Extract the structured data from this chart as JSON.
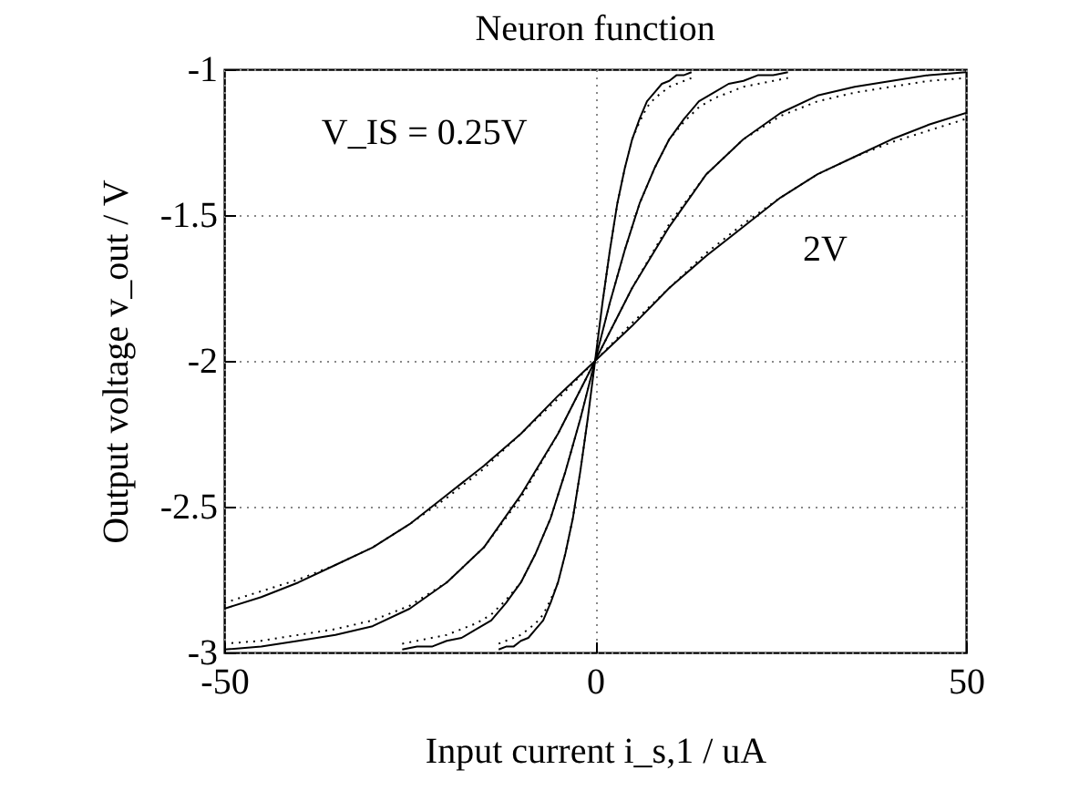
{
  "chart_data": {
    "type": "line",
    "title": "Neuron function",
    "xlabel": "Input current i_s,1 / uA",
    "ylabel": "Output voltage v_out / V",
    "xlim": [
      -50,
      50
    ],
    "ylim": [
      -3,
      -1
    ],
    "xticks": [
      -50,
      0,
      50
    ],
    "yticks": [
      -3,
      -2.5,
      -2,
      -1.5,
      -1
    ],
    "grid": true,
    "annotations": [
      "V_IS = 0.25V",
      "2V"
    ],
    "series": [
      {
        "color": "#000000",
        "line_style": "solid",
        "x": [
          -13,
          -12,
          -11,
          -10,
          -9,
          -8,
          -7,
          -6,
          -5,
          -4,
          -3,
          -2,
          -1,
          0,
          1,
          2,
          3,
          4,
          5,
          6,
          7,
          8,
          9,
          10,
          11,
          12,
          13
        ],
        "values": [
          -2.99,
          -2.98,
          -2.98,
          -2.96,
          -2.95,
          -2.92,
          -2.89,
          -2.83,
          -2.76,
          -2.66,
          -2.54,
          -2.38,
          -2.2,
          -2,
          -1.8,
          -1.62,
          -1.46,
          -1.34,
          -1.24,
          -1.17,
          -1.11,
          -1.08,
          -1.05,
          -1.04,
          -1.02,
          -1.02,
          -1.01
        ]
      },
      {
        "color": "#000000",
        "line_style": "solid",
        "x": [
          -26,
          -24,
          -22,
          -20,
          -18,
          -16,
          -14,
          -12,
          -10,
          -8,
          -6,
          -4,
          -2,
          0,
          2,
          4,
          6,
          8,
          10,
          12,
          14,
          16,
          18,
          20,
          22,
          24,
          26
        ],
        "values": [
          -2.99,
          -2.98,
          -2.98,
          -2.96,
          -2.95,
          -2.92,
          -2.89,
          -2.83,
          -2.76,
          -2.66,
          -2.54,
          -2.38,
          -2.2,
          -2,
          -1.8,
          -1.62,
          -1.46,
          -1.34,
          -1.24,
          -1.17,
          -1.11,
          -1.08,
          -1.05,
          -1.04,
          -1.02,
          -1.02,
          -1.01
        ]
      },
      {
        "color": "#000000",
        "line_style": "solid",
        "x": [
          -50,
          -45,
          -40,
          -35,
          -30,
          -25,
          -20,
          -15,
          -10,
          -5,
          0,
          5,
          10,
          15,
          20,
          25,
          30,
          35,
          40,
          45,
          50
        ],
        "values": [
          -2.99,
          -2.98,
          -2.96,
          -2.94,
          -2.91,
          -2.85,
          -2.76,
          -2.64,
          -2.46,
          -2.25,
          -2,
          -1.75,
          -1.54,
          -1.36,
          -1.24,
          -1.15,
          -1.09,
          -1.06,
          -1.04,
          -1.02,
          -1.01
        ]
      },
      {
        "color": "#000000",
        "line_style": "solid",
        "x": [
          -50,
          -45,
          -40,
          -35,
          -30,
          -25,
          -20,
          -15,
          -10,
          -5,
          0,
          5,
          10,
          15,
          20,
          25,
          30,
          35,
          40,
          45,
          50
        ],
        "values": [
          -2.85,
          -2.81,
          -2.76,
          -2.7,
          -2.64,
          -2.56,
          -2.46,
          -2.36,
          -2.25,
          -2.12,
          -2,
          -1.88,
          -1.75,
          -1.64,
          -1.54,
          -1.44,
          -1.36,
          -1.3,
          -1.24,
          -1.19,
          -1.15
        ]
      },
      {
        "color": "#000000",
        "line_style": "dotted",
        "x": [
          -13,
          -12,
          -11,
          -10,
          -9,
          -8,
          -7,
          -6,
          -5,
          -4,
          -3,
          -2,
          -1,
          0,
          1,
          2,
          3,
          4,
          5,
          6,
          7,
          8,
          9,
          10,
          11,
          12,
          13
        ],
        "values": [
          -2.97,
          -2.96,
          -2.95,
          -2.94,
          -2.92,
          -2.9,
          -2.87,
          -2.82,
          -2.76,
          -2.66,
          -2.54,
          -2.38,
          -2.2,
          -2,
          -1.8,
          -1.62,
          -1.46,
          -1.34,
          -1.24,
          -1.18,
          -1.13,
          -1.1,
          -1.08,
          -1.06,
          -1.05,
          -1.04,
          -1.03
        ]
      },
      {
        "color": "#000000",
        "line_style": "dotted",
        "x": [
          -26,
          -24,
          -22,
          -20,
          -18,
          -16,
          -14,
          -12,
          -10,
          -8,
          -6,
          -4,
          -2,
          0,
          2,
          4,
          6,
          8,
          10,
          12,
          14,
          16,
          18,
          20,
          22,
          24,
          26
        ],
        "values": [
          -2.97,
          -2.96,
          -2.95,
          -2.94,
          -2.92,
          -2.9,
          -2.87,
          -2.82,
          -2.76,
          -2.66,
          -2.54,
          -2.38,
          -2.2,
          -2,
          -1.8,
          -1.62,
          -1.46,
          -1.34,
          -1.24,
          -1.18,
          -1.13,
          -1.1,
          -1.08,
          -1.06,
          -1.05,
          -1.04,
          -1.03
        ]
      },
      {
        "color": "#000000",
        "line_style": "dotted",
        "x": [
          -50,
          -45,
          -40,
          -35,
          -30,
          -25,
          -20,
          -15,
          -10,
          -5,
          0,
          5,
          10,
          15,
          20,
          25,
          30,
          35,
          40,
          45,
          50
        ],
        "values": [
          -2.97,
          -2.96,
          -2.94,
          -2.92,
          -2.89,
          -2.84,
          -2.76,
          -2.64,
          -2.47,
          -2.25,
          -2,
          -1.75,
          -1.53,
          -1.36,
          -1.24,
          -1.16,
          -1.11,
          -1.08,
          -1.06,
          -1.04,
          -1.03
        ]
      },
      {
        "color": "#000000",
        "line_style": "dotted",
        "x": [
          -50,
          -45,
          -40,
          -35,
          -30,
          -25,
          -20,
          -15,
          -10,
          -5,
          0,
          5,
          10,
          15,
          20,
          25,
          30,
          35,
          40,
          45,
          50
        ],
        "values": [
          -2.83,
          -2.79,
          -2.75,
          -2.7,
          -2.64,
          -2.56,
          -2.47,
          -2.37,
          -2.25,
          -2.13,
          -2,
          -1.87,
          -1.75,
          -1.63,
          -1.53,
          -1.44,
          -1.36,
          -1.3,
          -1.25,
          -1.21,
          -1.17
        ]
      }
    ]
  }
}
